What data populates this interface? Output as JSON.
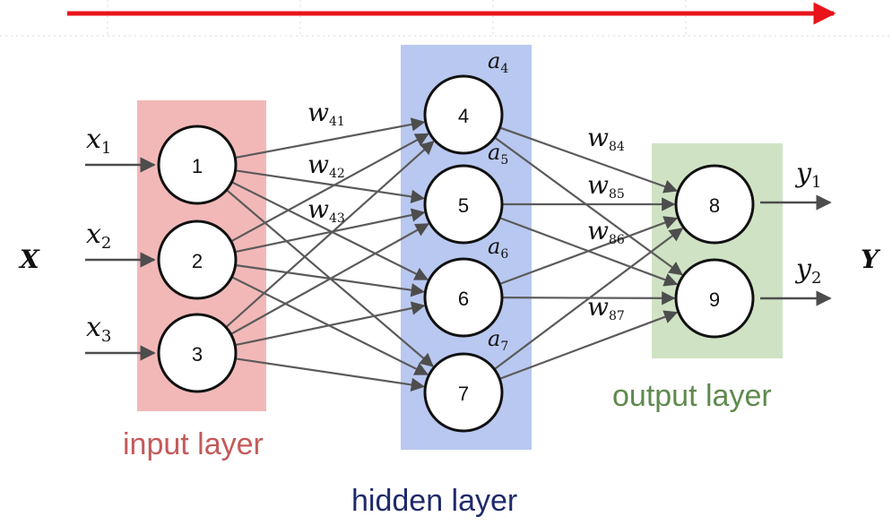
{
  "diagram": {
    "title_arrow": "forward-propagation-arrow",
    "inputs": [
      "x",
      "x",
      "x"
    ],
    "input_subscripts": [
      "1",
      "2",
      "3"
    ],
    "input_vector_label": "X",
    "output_vector_label": "Y",
    "outputs": [
      "y",
      "y"
    ],
    "output_subscripts": [
      "1",
      "2"
    ],
    "input_nodes": [
      "1",
      "2",
      "3"
    ],
    "hidden_nodes": [
      "4",
      "5",
      "6",
      "7"
    ],
    "output_nodes": [
      "8",
      "9"
    ],
    "activations": [
      "a",
      "a",
      "a",
      "a"
    ],
    "activation_subscripts": [
      "4",
      "5",
      "6",
      "7"
    ],
    "weights_left": [
      {
        "base": "w",
        "sub": "41"
      },
      {
        "base": "w",
        "sub": "42"
      },
      {
        "base": "w",
        "sub": "43"
      }
    ],
    "weights_right": [
      {
        "base": "w",
        "sub": "84"
      },
      {
        "base": "w",
        "sub": "85"
      },
      {
        "base": "w",
        "sub": "86"
      },
      {
        "base": "w",
        "sub": "87"
      }
    ],
    "layer_labels": {
      "input": "input layer",
      "hidden": "hidden layer",
      "output": "output layer"
    },
    "colors": {
      "input_layer_fill": "#f2b8b8",
      "hidden_layer_fill": "#b9c8f0",
      "output_layer_fill": "#cfe3c4",
      "input_label": "#c45a5a",
      "hidden_label": "#1f2a6b",
      "output_label": "#5f8a4e",
      "arrow_red": "#e8141a",
      "edge": "#5a5a5a",
      "node_stroke": "#111111"
    }
  }
}
